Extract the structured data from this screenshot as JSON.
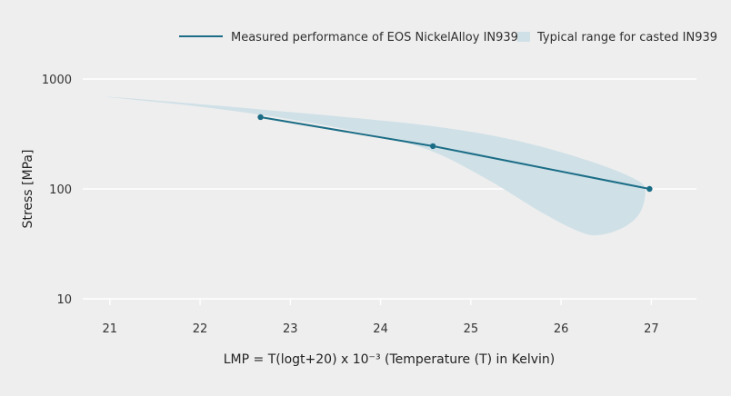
{
  "chart_data": {
    "type": "line",
    "xlabel": "LMP = T(logt+20) x 10⁻³ (Temperature (T) in Kelvin)",
    "ylabel": "Stress [MPa]",
    "x_ticks": [
      21,
      22,
      23,
      24,
      25,
      26,
      27
    ],
    "y_ticks": [
      10,
      100,
      1000
    ],
    "y_scale": "log",
    "xlim": [
      20.7,
      27.5
    ],
    "ylim": [
      10,
      1000
    ],
    "grid": "horizontal",
    "legend_position": "top-right",
    "series": [
      {
        "name": "Measured performance of EOS NickelAlloy IN939",
        "color": "#1b6d86",
        "x": [
          22.67,
          24.58,
          26.98
        ],
        "y": [
          450,
          245,
          100
        ]
      }
    ],
    "range_band": {
      "name": "Typical range for casted IN939",
      "color": "#cfe0e7",
      "upper": {
        "x": [
          20.95,
          22.0,
          23.0,
          24.0,
          24.6,
          25.2,
          25.8,
          26.4,
          26.8,
          26.93
        ],
        "y": [
          690,
          590,
          500,
          420,
          370,
          310,
          240,
          170,
          125,
          100
        ]
      },
      "lower": {
        "x": [
          20.95,
          22.0,
          23.0,
          24.0,
          24.6,
          25.2,
          25.8,
          26.2,
          26.42,
          26.7,
          26.88,
          26.93
        ],
        "y": [
          690,
          560,
          430,
          300,
          215,
          120,
          60,
          41,
          38,
          45,
          62,
          100
        ]
      }
    }
  }
}
